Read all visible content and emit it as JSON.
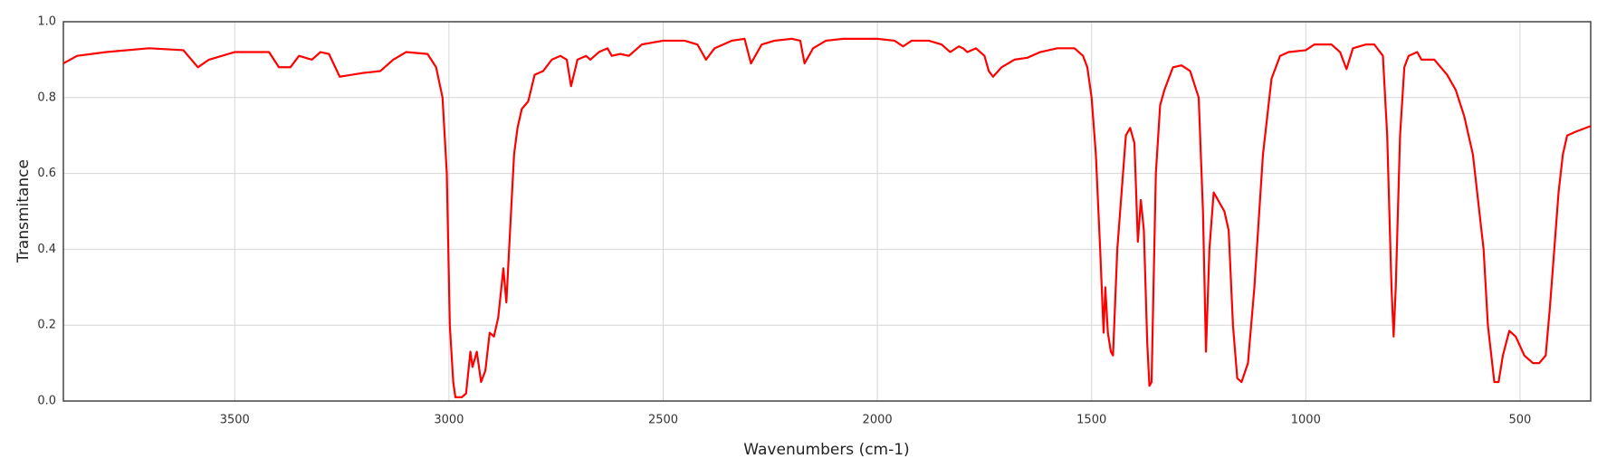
{
  "chart_data": {
    "type": "line",
    "x_label": "Wavenumbers (cm-1)",
    "y_label": "Transmitance",
    "xlim": [
      3900,
      335
    ],
    "ylim": [
      0,
      1
    ],
    "xticks": [
      3500,
      3000,
      2500,
      2000,
      1500,
      1000,
      500
    ],
    "yticks": [
      {
        "value": 0,
        "label": "0.0"
      },
      0.2,
      0.4,
      0.6,
      0.8,
      {
        "value": 1,
        "label": "1.0"
      }
    ],
    "grid": true,
    "series": [
      {
        "color": "#ff0000",
        "x": [
          3900,
          3868,
          3800,
          3700,
          3620,
          3586,
          3560,
          3500,
          3420,
          3397,
          3370,
          3350,
          3320,
          3300,
          3280,
          3255,
          3200,
          3160,
          3130,
          3100,
          3050,
          3030,
          3015,
          3005,
          2998,
          2990,
          2985,
          2970,
          2960,
          2950,
          2945,
          2935,
          2925,
          2915,
          2905,
          2895,
          2885,
          2873,
          2866,
          2855,
          2848,
          2840,
          2830,
          2815,
          2800,
          2780,
          2760,
          2740,
          2725,
          2715,
          2700,
          2680,
          2670,
          2650,
          2630,
          2620,
          2600,
          2580,
          2550,
          2500,
          2450,
          2420,
          2400,
          2380,
          2340,
          2310,
          2295,
          2270,
          2240,
          2200,
          2180,
          2170,
          2150,
          2120,
          2080,
          2000,
          1960,
          1940,
          1920,
          1880,
          1850,
          1830,
          1810,
          1800,
          1790,
          1770,
          1750,
          1740,
          1730,
          1710,
          1680,
          1650,
          1620,
          1580,
          1540,
          1520,
          1510,
          1500,
          1490,
          1480,
          1472,
          1468,
          1462,
          1455,
          1450,
          1440,
          1430,
          1420,
          1410,
          1400,
          1392,
          1385,
          1378,
          1370,
          1365,
          1360,
          1350,
          1340,
          1330,
          1310,
          1290,
          1270,
          1250,
          1240,
          1233,
          1225,
          1215,
          1205,
          1190,
          1180,
          1170,
          1160,
          1150,
          1135,
          1120,
          1100,
          1080,
          1060,
          1040,
          1000,
          980,
          940,
          920,
          905,
          890,
          860,
          840,
          820,
          810,
          800,
          795,
          790,
          780,
          770,
          760,
          740,
          730,
          700,
          670,
          650,
          630,
          610,
          600,
          585,
          575,
          560,
          550,
          540,
          525,
          510,
          490,
          470,
          455,
          440,
          430,
          420,
          410,
          400,
          390,
          370,
          335
        ],
        "values": [
          0.89,
          0.91,
          0.92,
          0.93,
          0.925,
          0.88,
          0.9,
          0.92,
          0.92,
          0.88,
          0.88,
          0.91,
          0.9,
          0.92,
          0.915,
          0.855,
          0.865,
          0.87,
          0.9,
          0.92,
          0.915,
          0.88,
          0.8,
          0.6,
          0.2,
          0.05,
          0.01,
          0.01,
          0.02,
          0.13,
          0.09,
          0.13,
          0.05,
          0.08,
          0.18,
          0.17,
          0.22,
          0.35,
          0.26,
          0.5,
          0.65,
          0.72,
          0.77,
          0.79,
          0.86,
          0.87,
          0.9,
          0.91,
          0.9,
          0.83,
          0.9,
          0.91,
          0.9,
          0.92,
          0.93,
          0.91,
          0.915,
          0.91,
          0.94,
          0.95,
          0.95,
          0.94,
          0.9,
          0.93,
          0.95,
          0.955,
          0.89,
          0.94,
          0.95,
          0.955,
          0.95,
          0.89,
          0.93,
          0.95,
          0.955,
          0.955,
          0.95,
          0.935,
          0.95,
          0.95,
          0.94,
          0.92,
          0.935,
          0.93,
          0.92,
          0.93,
          0.91,
          0.87,
          0.855,
          0.88,
          0.9,
          0.905,
          0.92,
          0.93,
          0.93,
          0.91,
          0.88,
          0.8,
          0.65,
          0.4,
          0.18,
          0.3,
          0.18,
          0.13,
          0.12,
          0.4,
          0.55,
          0.7,
          0.72,
          0.68,
          0.42,
          0.53,
          0.45,
          0.15,
          0.04,
          0.05,
          0.6,
          0.78,
          0.82,
          0.88,
          0.885,
          0.87,
          0.8,
          0.5,
          0.13,
          0.4,
          0.55,
          0.53,
          0.5,
          0.45,
          0.2,
          0.06,
          0.05,
          0.1,
          0.3,
          0.65,
          0.85,
          0.91,
          0.92,
          0.925,
          0.94,
          0.94,
          0.92,
          0.875,
          0.93,
          0.94,
          0.94,
          0.91,
          0.7,
          0.3,
          0.17,
          0.3,
          0.7,
          0.88,
          0.91,
          0.92,
          0.9,
          0.9,
          0.86,
          0.82,
          0.75,
          0.65,
          0.55,
          0.4,
          0.2,
          0.05,
          0.05,
          0.12,
          0.185,
          0.17,
          0.12,
          0.1,
          0.1,
          0.12,
          0.25,
          0.4,
          0.55,
          0.65,
          0.7,
          0.71,
          0.725
        ]
      }
    ]
  }
}
